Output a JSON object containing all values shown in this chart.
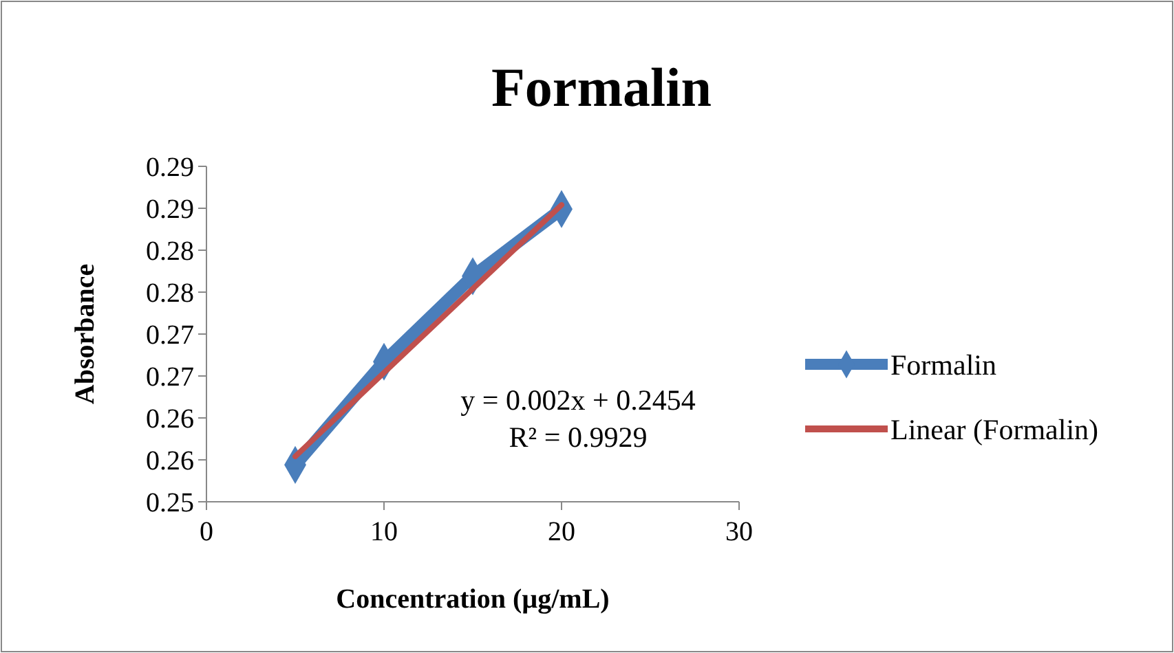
{
  "chart_data": {
    "type": "line",
    "title": "Formalin",
    "xlabel": "Concentration (µg/mL)",
    "ylabel": "Absorbance",
    "x": [
      5,
      10,
      15,
      20
    ],
    "series": [
      {
        "name": "Formalin",
        "color": "#4a7ebb",
        "values": [
          0.2544,
          0.2667,
          0.2769,
          0.2849
        ],
        "marker": "diamond"
      },
      {
        "name": "Linear (Formalin)",
        "type": "line",
        "color": "#c0504d",
        "x": [
          5,
          20
        ],
        "values": [
          0.2554,
          0.2854
        ],
        "marker": "none"
      }
    ],
    "xlim": [
      0,
      30
    ],
    "xticks": [
      0,
      10,
      20,
      30
    ],
    "ylim": [
      0.25,
      0.29
    ],
    "yticks": [
      0.25,
      {
        "value": 0.255,
        "label": "0.26"
      },
      0.26,
      {
        "value": 0.265,
        "label": "0.27"
      },
      0.27,
      {
        "value": 0.275,
        "label": "0.28"
      },
      0.28,
      {
        "value": 0.285,
        "label": "0.29"
      },
      0.29
    ],
    "annotations": [
      "y = 0.002x + 0.2454",
      "R² = 0.9929"
    ],
    "grid": false,
    "legend": "right",
    "line_style": "solid"
  }
}
